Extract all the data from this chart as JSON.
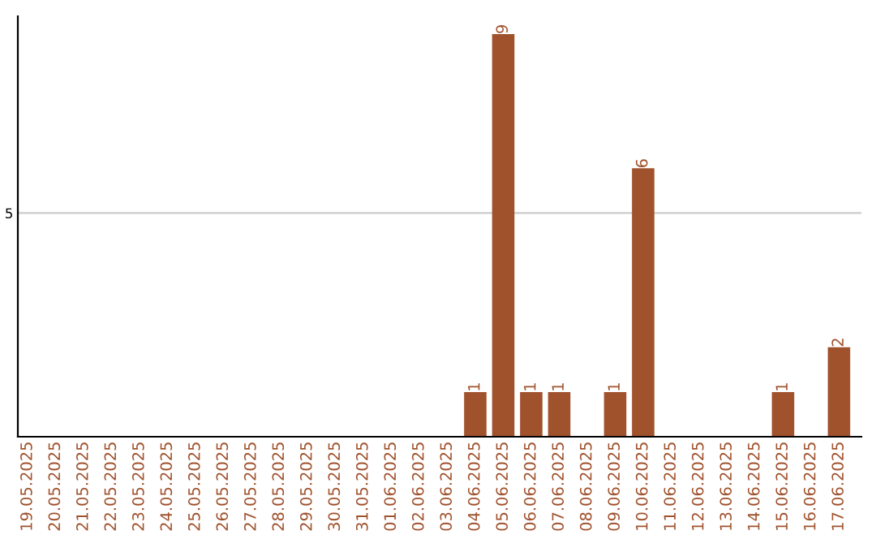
{
  "chart_data": {
    "type": "bar",
    "categories": [
      "19.05.2025",
      "20.05.2025",
      "21.05.2025",
      "22.05.2025",
      "23.05.2025",
      "24.05.2025",
      "25.05.2025",
      "26.05.2025",
      "27.05.2025",
      "28.05.2025",
      "29.05.2025",
      "30.05.2025",
      "31.05.2025",
      "01.06.2025",
      "02.06.2025",
      "03.06.2025",
      "04.06.2025",
      "05.06.2025",
      "06.06.2025",
      "07.06.2025",
      "08.06.2025",
      "09.06.2025",
      "10.06.2025",
      "11.06.2025",
      "12.06.2025",
      "13.06.2025",
      "14.06.2025",
      "15.06.2025",
      "16.06.2025",
      "17.06.2025"
    ],
    "values": [
      null,
      null,
      null,
      null,
      null,
      null,
      null,
      null,
      null,
      null,
      null,
      null,
      null,
      null,
      null,
      null,
      1,
      9,
      1,
      1,
      null,
      1,
      6,
      null,
      null,
      null,
      null,
      1,
      null,
      2
    ],
    "value_labels": [
      null,
      null,
      null,
      null,
      null,
      null,
      null,
      null,
      null,
      null,
      null,
      null,
      null,
      null,
      null,
      null,
      "1",
      "9",
      "1",
      "1",
      null,
      "1",
      "6",
      null,
      null,
      null,
      null,
      "1",
      null,
      "2"
    ],
    "color": "#a0522d",
    "ylim": [
      0,
      9.4
    ],
    "yticks": [
      5
    ],
    "grid": "y"
  }
}
